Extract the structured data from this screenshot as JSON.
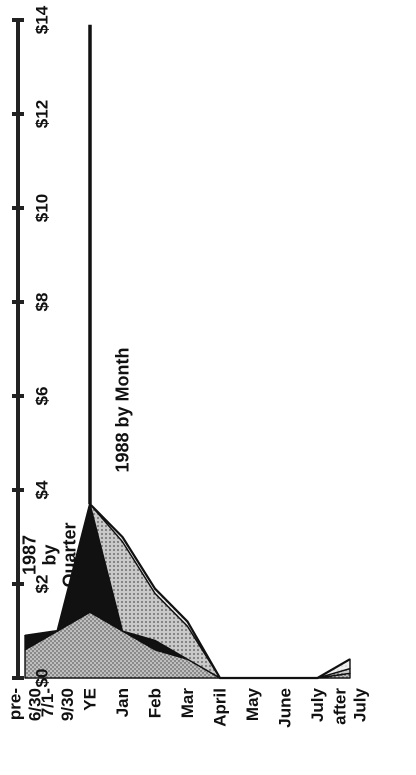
{
  "chart_data": {
    "type": "area",
    "orientation": "rotated-90",
    "title": "",
    "xlabel": "",
    "ylabel": "",
    "categories": [
      "pre-6/30",
      "7/1-9/30",
      "YE",
      "Jan",
      "Feb",
      "Mar",
      "April",
      "May",
      "June",
      "July",
      "after July"
    ],
    "category_label_lines": [
      [
        "pre-",
        "6/30"
      ],
      [
        "7/1-",
        "9/30"
      ],
      [
        "YE"
      ],
      [
        "Jan"
      ],
      [
        "Feb"
      ],
      [
        "Mar"
      ],
      [
        "April"
      ],
      [
        "May"
      ],
      [
        "June"
      ],
      [
        "July"
      ],
      [
        "after",
        "July"
      ]
    ],
    "ylim": [
      0,
      14
    ],
    "yticks": [
      0,
      2,
      4,
      6,
      8,
      10,
      12,
      14
    ],
    "ytick_labels": [
      "$0",
      "$2",
      "$4",
      "$6",
      "$8",
      "$10",
      "$12",
      "$14"
    ],
    "grid": false,
    "stacked": true,
    "series": [
      {
        "values": [
          0.6,
          1.0,
          1.4,
          1.0,
          0.6,
          0.4,
          0.0,
          0.0,
          0.0,
          0.0,
          0.1
        ],
        "fill": "#8a8a8a",
        "pattern": "dots-on-gray"
      },
      {
        "values": [
          0.3,
          0.0,
          2.3,
          0.0,
          0.2,
          0.0,
          0.0,
          0.0,
          0.0,
          0.0,
          0.0
        ],
        "fill": "#111111",
        "pattern": "solid"
      },
      {
        "values": [
          0.0,
          0.0,
          0.0,
          1.9,
          1.0,
          0.7,
          0.0,
          0.0,
          0.0,
          0.0,
          0.1
        ],
        "fill": "#b8b8b8",
        "pattern": "light-dots"
      },
      {
        "values": [
          0.0,
          0.0,
          0.0,
          0.1,
          0.1,
          0.1,
          0.0,
          0.0,
          0.0,
          0.0,
          0.2
        ],
        "fill": "#e6e6e6",
        "pattern": "very-light"
      }
    ],
    "spike": {
      "category": "YE",
      "value": 13.9
    },
    "annotations": [
      {
        "lines": [
          "1987",
          "by",
          "Quarter"
        ]
      },
      {
        "lines": [
          "1988 by Month"
        ]
      }
    ],
    "colors": {
      "outline": "#111111",
      "axis": "#222222"
    }
  }
}
